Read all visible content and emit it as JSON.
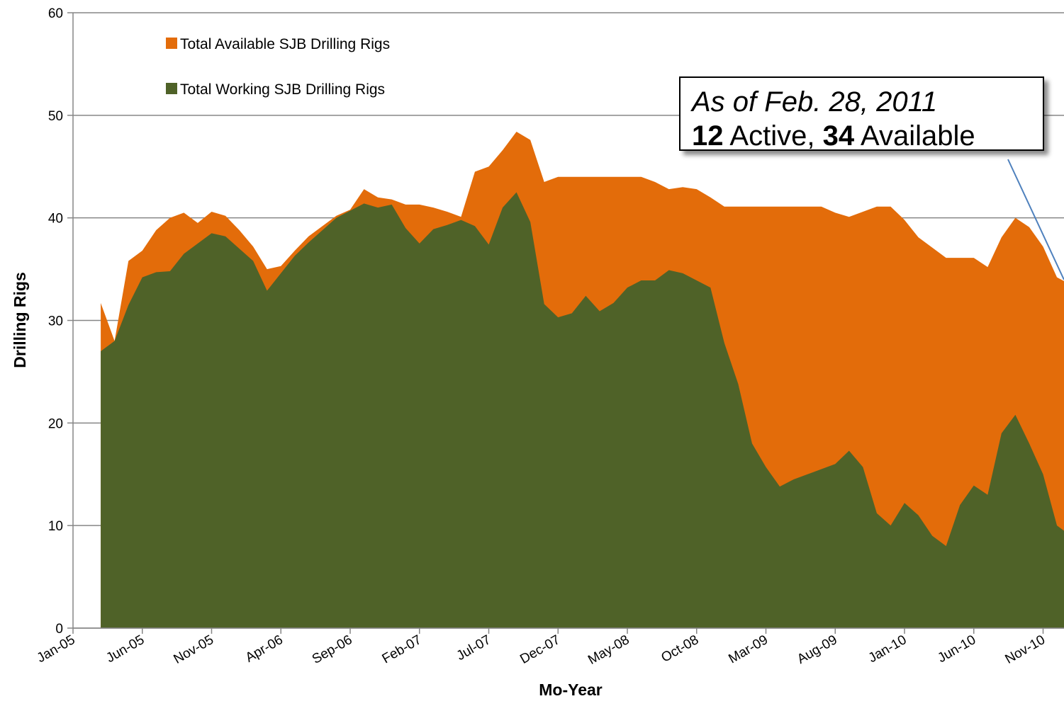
{
  "chart_data": {
    "type": "area",
    "x_label": "Mo-Year",
    "y_label": "Drilling Rigs",
    "annotation": [
      "As of Feb. 28, 2011",
      "12",
      "Active,",
      "34",
      "Available"
    ],
    "categories": [
      "Jan-05",
      null,
      null,
      null,
      null,
      "Jun-05",
      null,
      null,
      null,
      null,
      "Nov-05",
      null,
      null,
      null,
      null,
      "Apr-06",
      null,
      null,
      null,
      null,
      "Sep-06",
      null,
      null,
      null,
      null,
      "Feb-07",
      null,
      null,
      null,
      null,
      "Jul-07",
      null,
      null,
      null,
      null,
      "Dec-07",
      null,
      null,
      null,
      null,
      "May-08",
      null,
      null,
      null,
      null,
      "Oct-08",
      null,
      null,
      null,
      null,
      "Mar-09",
      null,
      null,
      null,
      null,
      "Aug-09",
      null,
      null,
      null,
      null,
      "Jan-10",
      null,
      null,
      null,
      null,
      "Jun-10",
      null,
      null,
      null,
      null,
      "Nov-10",
      null,
      null
    ],
    "series": [
      {
        "name": "Total Available SJB Drilling Rigs",
        "color": "#e36c0a",
        "values": [
          null,
          null,
          31.7,
          28,
          35.8,
          36.8,
          38.8,
          40,
          40.5,
          39.5,
          40.6,
          40.2,
          38.8,
          37.2,
          35,
          35.3,
          36.8,
          38.2,
          39.2,
          40.2,
          40.8,
          42.8,
          42,
          41.8,
          41.3,
          41.3,
          41,
          40.6,
          40.1,
          44.5,
          45,
          46.6,
          48.4,
          47.6,
          43.5,
          44,
          44,
          44,
          44,
          44,
          44,
          44,
          43.5,
          42.8,
          43,
          42.8,
          42,
          41.1,
          41.1,
          41.1,
          41.1,
          41.1,
          41.1,
          41.1,
          41.1,
          40.5,
          40.1,
          40.6,
          41.1,
          41.1,
          39.8,
          38.1,
          37.1,
          36.1,
          36.1,
          36.1,
          35.2,
          38.1,
          40,
          39.1,
          37.2,
          34.2,
          33.5
        ]
      },
      {
        "name": "Total Working SJB Drilling Rigs",
        "color": "#4f6228",
        "values": [
          null,
          null,
          27,
          28,
          31.5,
          34.2,
          34.7,
          34.8,
          36.5,
          37.5,
          38.5,
          38.2,
          37,
          35.8,
          32.9,
          34.6,
          36.3,
          37.6,
          38.8,
          40,
          40.7,
          41.4,
          41,
          41.3,
          39,
          37.5,
          38.9,
          39.3,
          39.8,
          39.2,
          37.4,
          41,
          42.5,
          39.6,
          31.6,
          30.3,
          30.7,
          32.4,
          30.9,
          31.7,
          33.2,
          33.9,
          33.9,
          34.9,
          34.6,
          33.9,
          33.2,
          27.8,
          23.8,
          18,
          15.7,
          13.8,
          14.5,
          15,
          15.5,
          16,
          17.3,
          15.7,
          11.2,
          10,
          12.2,
          11,
          9,
          8,
          12,
          13.9,
          13,
          19,
          20.8,
          18,
          15,
          10,
          9
        ]
      }
    ],
    "ylim": [
      0,
      60
    ],
    "yticks": [
      0,
      10,
      20,
      30,
      40,
      50,
      60
    ],
    "grid": true,
    "legend": "top-left"
  }
}
